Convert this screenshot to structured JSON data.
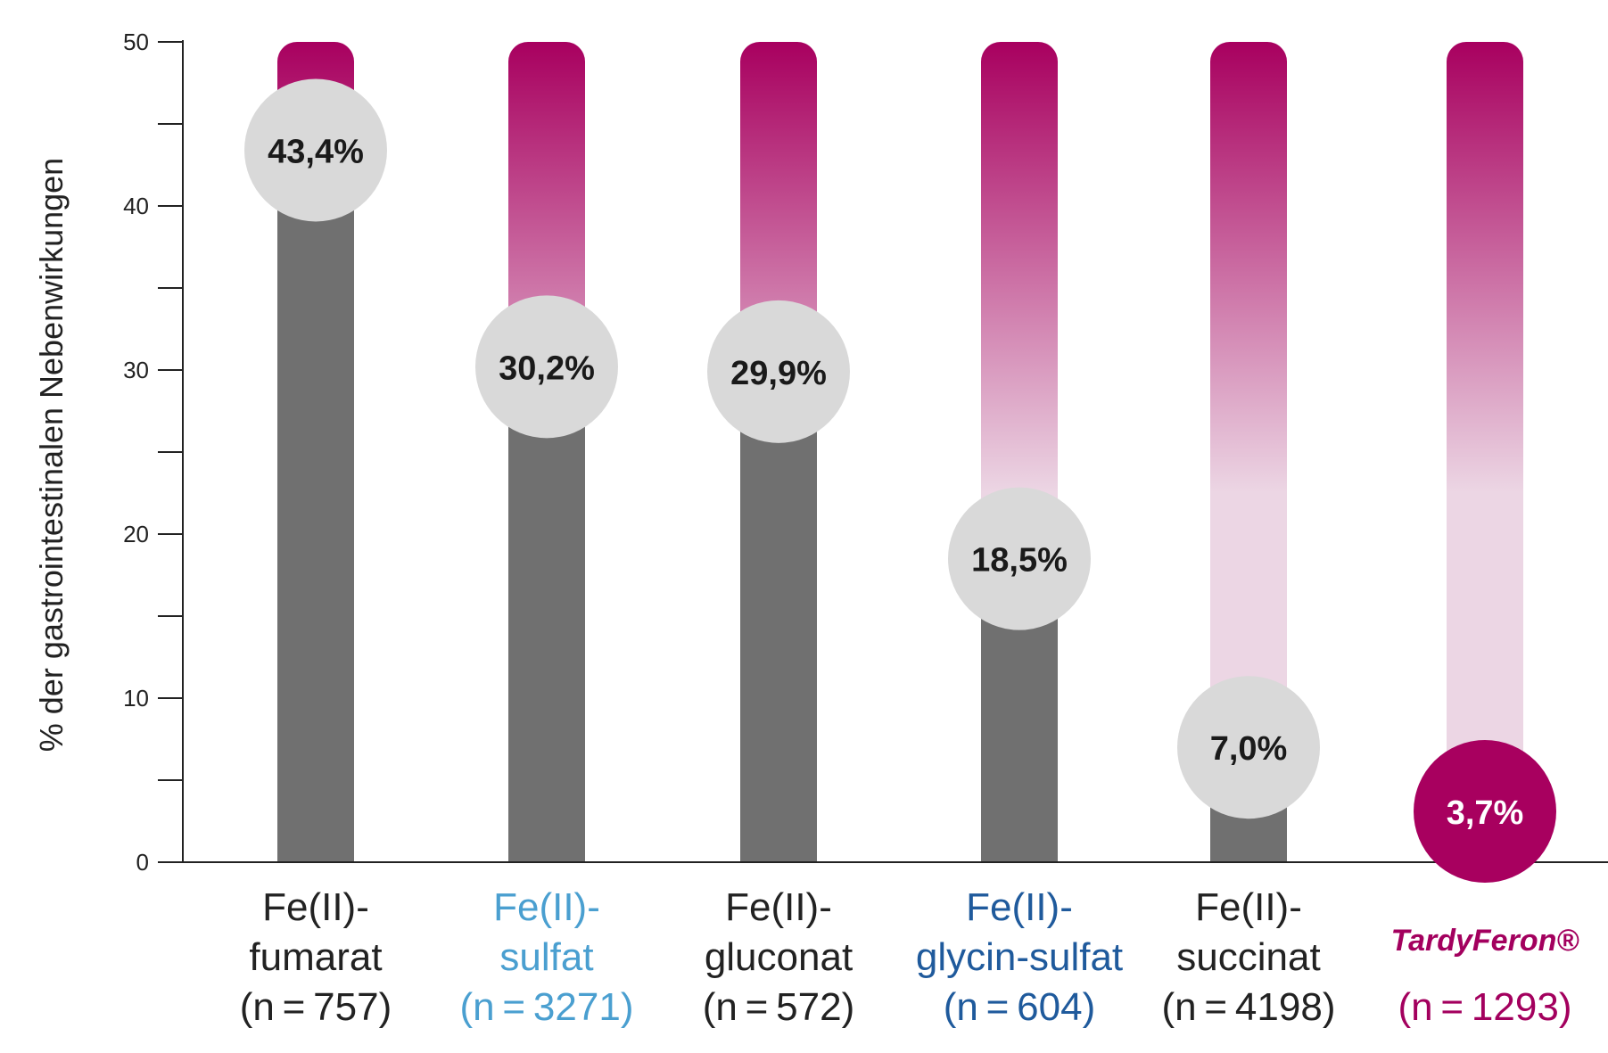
{
  "chart_data": {
    "type": "bar",
    "ylabel": "% der gastrointestinalen Nebenwirkungen",
    "ylim": [
      0,
      50
    ],
    "yticks": [
      0,
      10,
      20,
      30,
      40,
      50
    ],
    "categories": [
      {
        "lines": [
          "Fe(II)-",
          "fumarat",
          "(n = 757)"
        ],
        "color": "#222222"
      },
      {
        "lines": [
          "Fe(II)-",
          "sulfat",
          "(n = 3271)"
        ],
        "color": "#4a9fd0"
      },
      {
        "lines": [
          "Fe(II)-",
          "gluconat",
          "(n = 572)"
        ],
        "color": "#222222"
      },
      {
        "lines": [
          "Fe(II)-",
          "glycin-sulfat",
          "(n = 604)"
        ],
        "color": "#1f5a9c"
      },
      {
        "lines": [
          "Fe(II)-",
          "succinat",
          "(n = 4198)"
        ],
        "color": "#222222"
      },
      {
        "lines": [
          "",
          "",
          "(n = 1293)"
        ],
        "color": "#a3005e",
        "logo": "TardyFeron®"
      }
    ],
    "values": [
      43.4,
      30.2,
      29.9,
      18.5,
      7.0,
      3.7
    ],
    "value_labels": [
      "43,4%",
      "30,2%",
      "29,9%",
      "18,5%",
      "7,0%",
      "3,7%"
    ],
    "colors": {
      "bar_fill": "#707070",
      "gradient_top": "#a8005f",
      "gradient_bottom": "#ecd6e4",
      "bubble": "#d9d9d9",
      "bubble_text": "#1a1a1a",
      "highlight_bubble": "#a8005f",
      "highlight_text": "#ffffff"
    }
  }
}
